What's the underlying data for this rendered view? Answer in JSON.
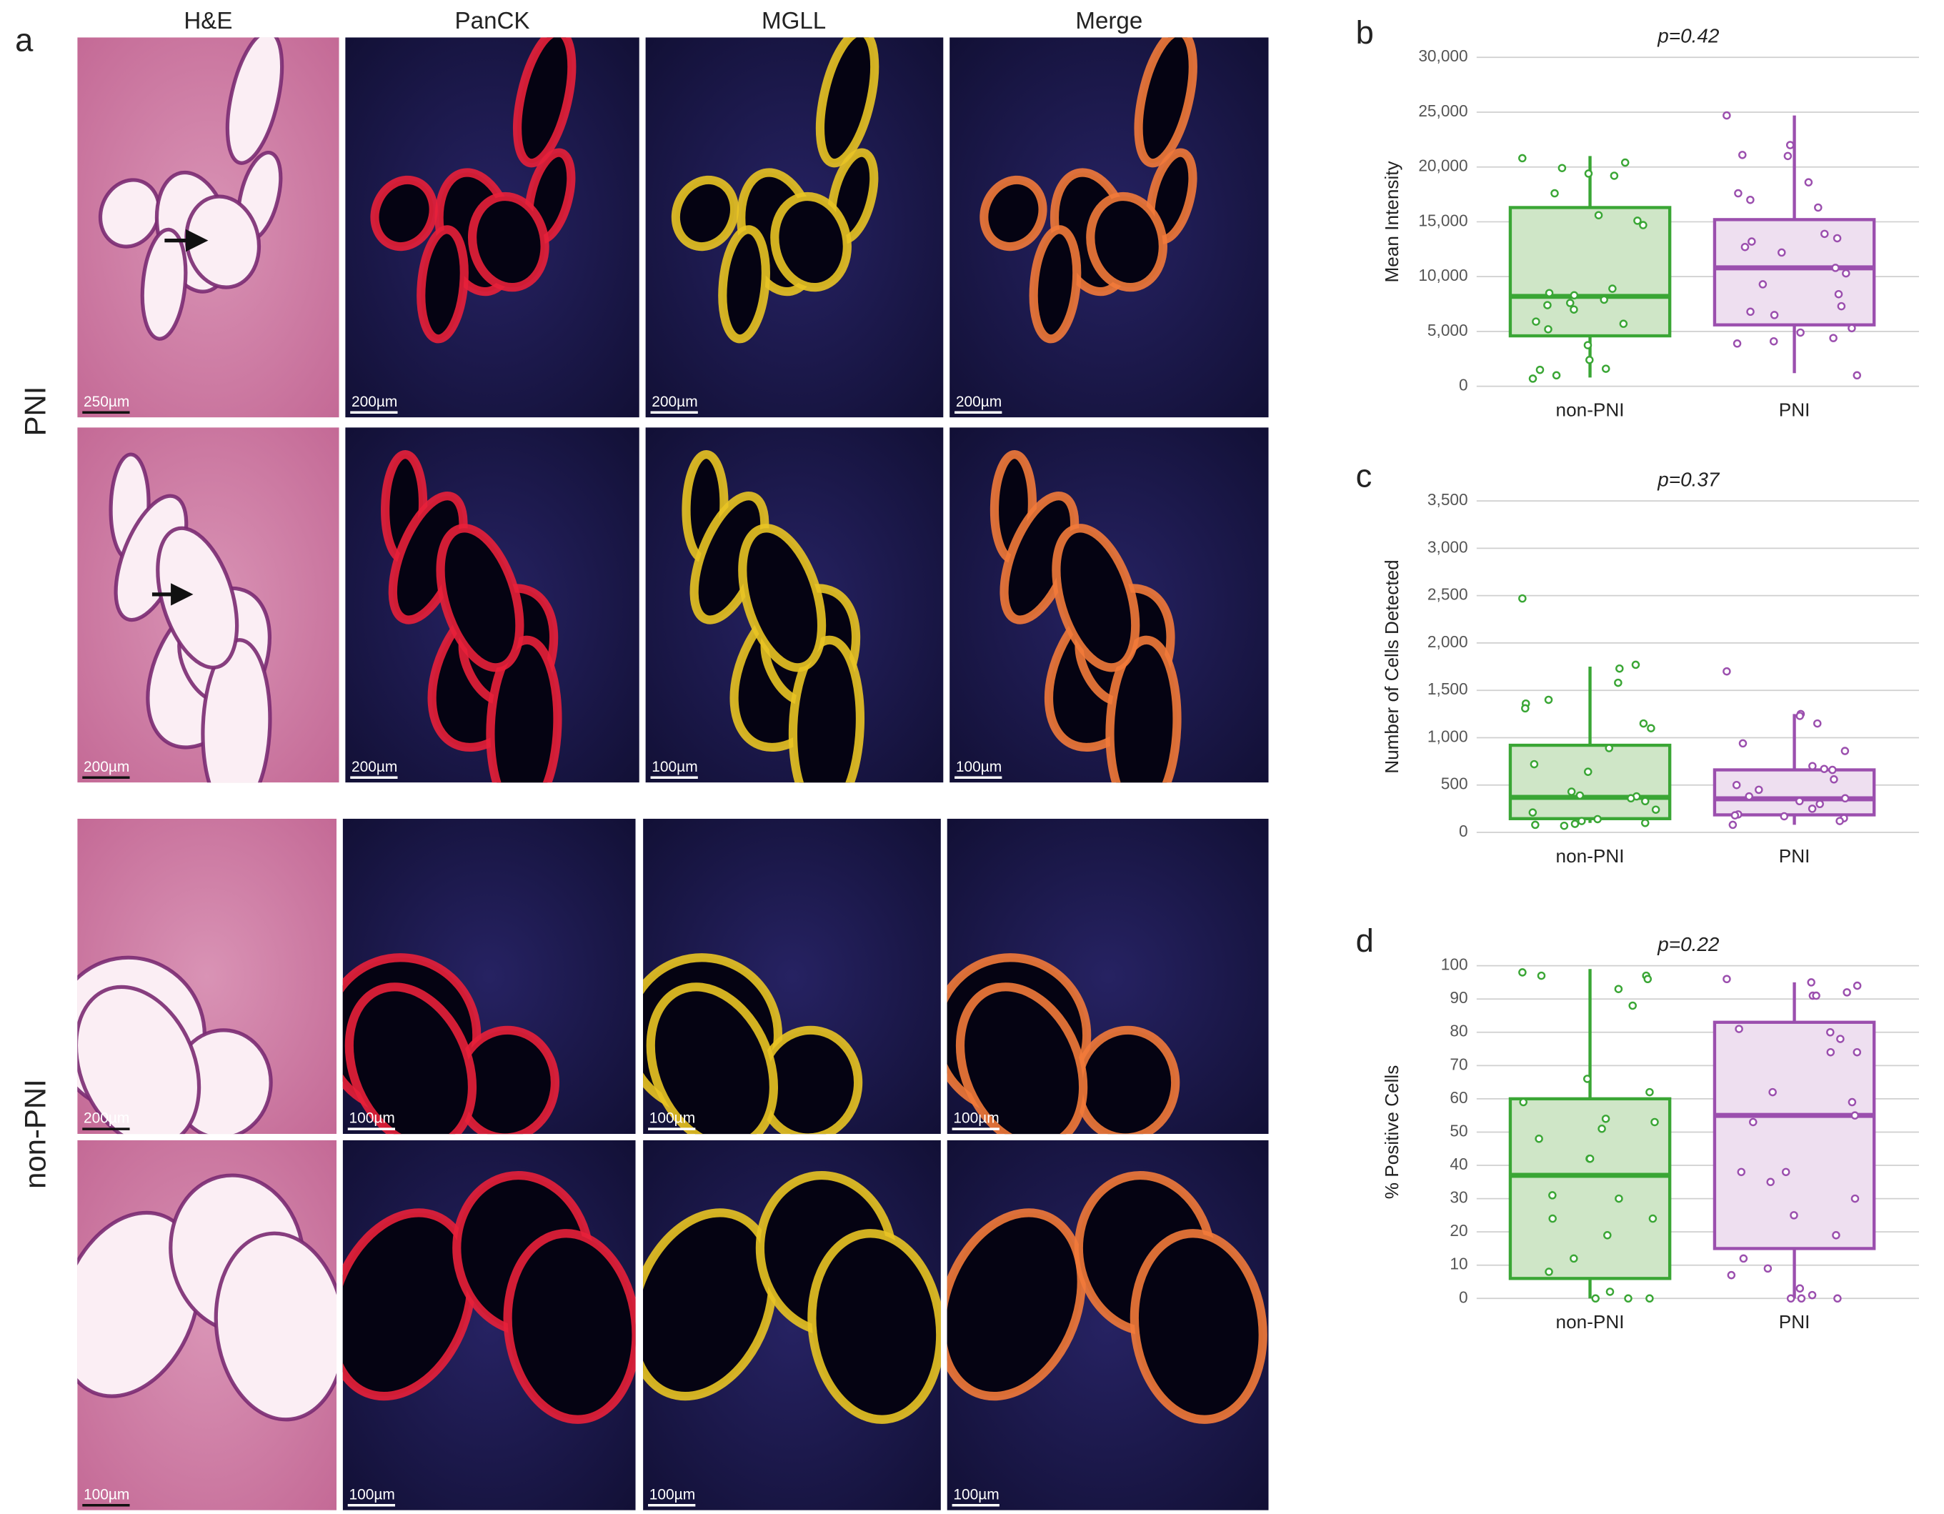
{
  "panel_a": {
    "label": "a",
    "columns": [
      "H&E",
      "PanCK",
      "MGLL",
      "Merge"
    ],
    "rows": [
      "PNI",
      "non-PNI"
    ],
    "scale_bars": [
      [
        "250µm",
        "200µm",
        "200µm",
        "200µm"
      ],
      [
        "200µm",
        "200µm",
        "100µm",
        "100µm"
      ],
      [
        "200µm",
        "100µm",
        "100µm",
        "100µm"
      ],
      [
        "100µm",
        "100µm",
        "100µm",
        "100µm"
      ]
    ]
  },
  "chart_data": [
    {
      "type": "box",
      "panel_label": "b",
      "title": "p=0.42",
      "y_label": "Mean Intensity",
      "categories": [
        "non-PNI",
        "PNI"
      ],
      "ylim": [
        0,
        30000
      ],
      "yticks": [
        0,
        {
          "value": 5000,
          "label": "5,000"
        },
        {
          "value": 10000,
          "label": "10,000"
        },
        {
          "value": 15000,
          "label": "15,000"
        },
        {
          "value": 20000,
          "label": "20,000"
        },
        {
          "value": 25000,
          "label": "25,000"
        },
        {
          "value": 30000,
          "label": "30,000"
        }
      ],
      "grid": true,
      "series": [
        {
          "color": "#3aa635",
          "fill": "#cfe6c7",
          "whisker_low": 800,
          "q1": 4600,
          "median": 8200,
          "q3": 16300,
          "whisker_high": 21000,
          "points": [
            20800,
            20400,
            19900,
            19400,
            19200,
            17600,
            15600,
            15100,
            14700,
            8900,
            8500,
            8300,
            7900,
            7600,
            7400,
            7000,
            5900,
            5700,
            5200,
            3750,
            2400,
            1600,
            1500,
            1000,
            700
          ]
        },
        {
          "color": "#9b4fae",
          "fill": "#eedff0",
          "whisker_low": 1200,
          "q1": 5600,
          "median": 10800,
          "q3": 15200,
          "whisker_high": 24700,
          "points": [
            24700,
            22000,
            21100,
            21000,
            18600,
            17600,
            17000,
            16300,
            13900,
            13500,
            13200,
            12700,
            12200,
            10800,
            10300,
            9300,
            8400,
            7300,
            6800,
            6500,
            5300,
            4900,
            4400,
            4100,
            3900,
            1000
          ]
        }
      ]
    },
    {
      "type": "box",
      "panel_label": "c",
      "title": "p=0.37",
      "y_label": "Number of Cells Detected",
      "categories": [
        "non-PNI",
        "PNI"
      ],
      "ylim": [
        0,
        3500
      ],
      "yticks": [
        0,
        500,
        {
          "value": 1000,
          "label": "1,000"
        },
        {
          "value": 1500,
          "label": "1,500"
        },
        {
          "value": 2000,
          "label": "2,000"
        },
        {
          "value": 2500,
          "label": "2,500"
        },
        {
          "value": 3000,
          "label": "3,000"
        },
        {
          "value": 3500,
          "label": "3,500"
        }
      ],
      "grid": true,
      "series": [
        {
          "color": "#3aa635",
          "fill": "#cfe6c7",
          "whisker_low": 100,
          "q1": 145,
          "median": 370,
          "q3": 920,
          "whisker_high": 1750,
          "points": [
            2470,
            1770,
            1730,
            1580,
            1400,
            1360,
            1310,
            1150,
            1100,
            890,
            720,
            640,
            430,
            390,
            380,
            360,
            330,
            240,
            210,
            140,
            120,
            100,
            90,
            80,
            70
          ]
        },
        {
          "color": "#9b4fae",
          "fill": "#eedff0",
          "whisker_low": 80,
          "q1": 185,
          "median": 355,
          "q3": 660,
          "whisker_high": 1250,
          "points": [
            1700,
            1250,
            1230,
            1150,
            940,
            860,
            700,
            670,
            660,
            560,
            500,
            450,
            380,
            360,
            330,
            300,
            250,
            190,
            180,
            170,
            150,
            120,
            80
          ]
        }
      ]
    },
    {
      "type": "box",
      "panel_label": "d",
      "title": "p=0.22",
      "y_label": "% Positive Cells",
      "categories": [
        "non-PNI",
        "PNI"
      ],
      "ylim": [
        0,
        100
      ],
      "yticks": [
        0,
        10,
        20,
        30,
        40,
        50,
        60,
        70,
        80,
        90,
        100
      ],
      "grid": true,
      "series": [
        {
          "color": "#3aa635",
          "fill": "#cfe6c7",
          "whisker_low": 0,
          "q1": 6,
          "median": 37,
          "q3": 60,
          "whisker_high": 99,
          "points": [
            98,
            97,
            97,
            96,
            93,
            88,
            66,
            62,
            59,
            54,
            53,
            51,
            48,
            42,
            42,
            31,
            30,
            24,
            24,
            19,
            12,
            8,
            2,
            0,
            0,
            0
          ]
        },
        {
          "color": "#9b4fae",
          "fill": "#eedff0",
          "whisker_low": 0,
          "q1": 15,
          "median": 55,
          "q3": 83,
          "whisker_high": 95,
          "points": [
            96,
            95,
            94,
            92,
            91,
            91,
            81,
            80,
            78,
            74,
            74,
            62,
            59,
            55,
            53,
            38,
            38,
            35,
            30,
            25,
            19,
            12,
            9,
            7,
            3,
            1,
            0,
            0,
            0
          ]
        }
      ]
    }
  ]
}
